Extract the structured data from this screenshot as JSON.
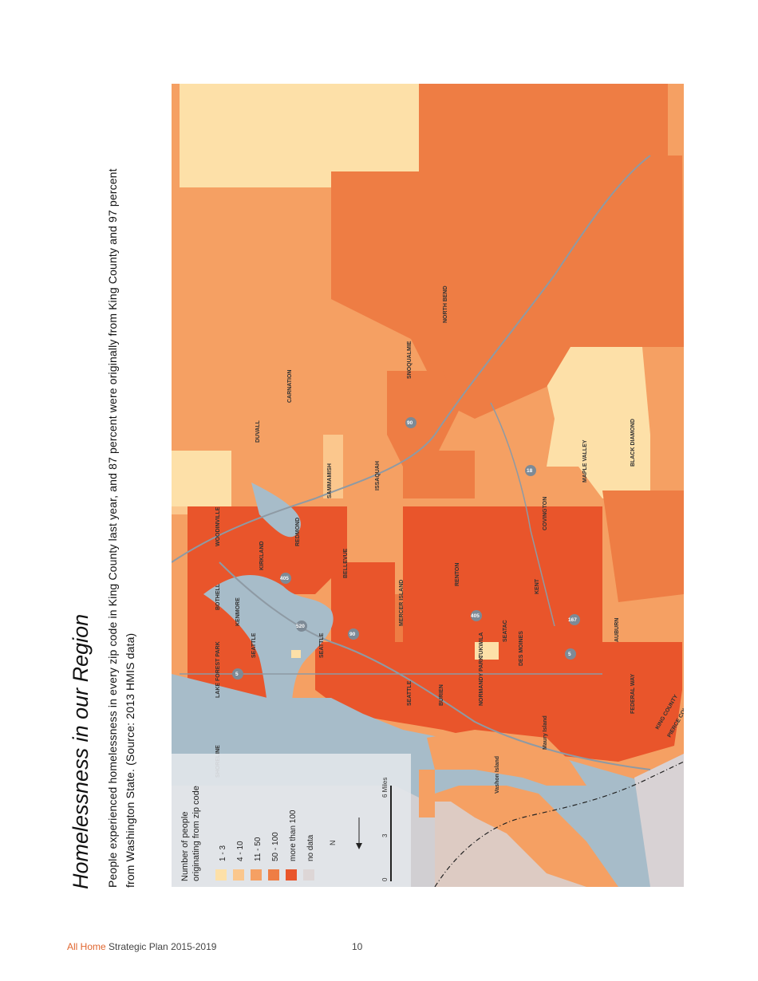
{
  "page": {
    "title": "Homelessness in our Region",
    "subtitle_line1": "People experienced homelessness in every zip code in King County last year, and 87 percent were originally from King County and 97 percent",
    "subtitle_line2": "from Washington State. (Source: 2013 HMIS data)"
  },
  "legend": {
    "title_line1": "Number of people",
    "title_line2": "originating from zip code",
    "items": [
      {
        "label": "1 - 3",
        "color": "#fde0a8"
      },
      {
        "label": "4 - 10",
        "color": "#fbc78d"
      },
      {
        "label": "11 - 50",
        "color": "#f5a063"
      },
      {
        "label": "50 - 100",
        "color": "#ee7d44"
      },
      {
        "label": "more than 100",
        "color": "#e9552b"
      },
      {
        "label": "no data",
        "color": "#ddd6d6"
      }
    ],
    "north_label": "N",
    "scale_labels": [
      "0",
      "3",
      "6 Miles"
    ]
  },
  "map_labels": {
    "shoreline": "SHORELINE",
    "lake_forest_park": "LAKE FOREST PARK",
    "bothell": "BOTHELL",
    "woodinville": "WOODINVILLE",
    "kenmore": "KENMORE",
    "kirkland": "KIRKLAND",
    "redmond": "REDMOND",
    "duvall": "DUVALL",
    "carnation": "CARNATION",
    "sammamish": "SAMMAMISH",
    "issaquah": "ISSAQUAH",
    "snoqualmie": "SNOQUALMIE",
    "north_bend": "NORTH BEND",
    "seattle_1": "SEATTLE",
    "seattle_2": "SEATTLE",
    "seattle_3": "SEATTLE",
    "bellevue": "BELLEVUE",
    "mercer_island": "MERCER ISLAND",
    "renton": "RENTON",
    "burien": "BURIEN",
    "tukwila": "TUKWILA",
    "seatac": "SEATAC",
    "normandy_park": "NORMANDY PARK",
    "des_moines": "DES MOINES",
    "kent": "KENT",
    "covington": "COVINGTON",
    "maple_valley": "MAPLE VALLEY",
    "black_diamond": "BLACK DIAMOND",
    "auburn": "AUBURN",
    "federal_way": "FEDERAL WAY",
    "king_county": "KING COUNTY",
    "pierce_county": "PIERCE COUNTY",
    "vashon_island": "Vashon Island",
    "maury_island": "Maury Island"
  },
  "highways": {
    "i5": "5",
    "i405": "405",
    "sr520": "520",
    "i90": "90",
    "i90_east": "90",
    "sr18": "18",
    "sr167": "167",
    "i5_south": "5",
    "i405_south": "405"
  },
  "footer": {
    "brand": "All Home",
    "rest": " Strategic Plan 2015-2019",
    "page_number": "10"
  }
}
